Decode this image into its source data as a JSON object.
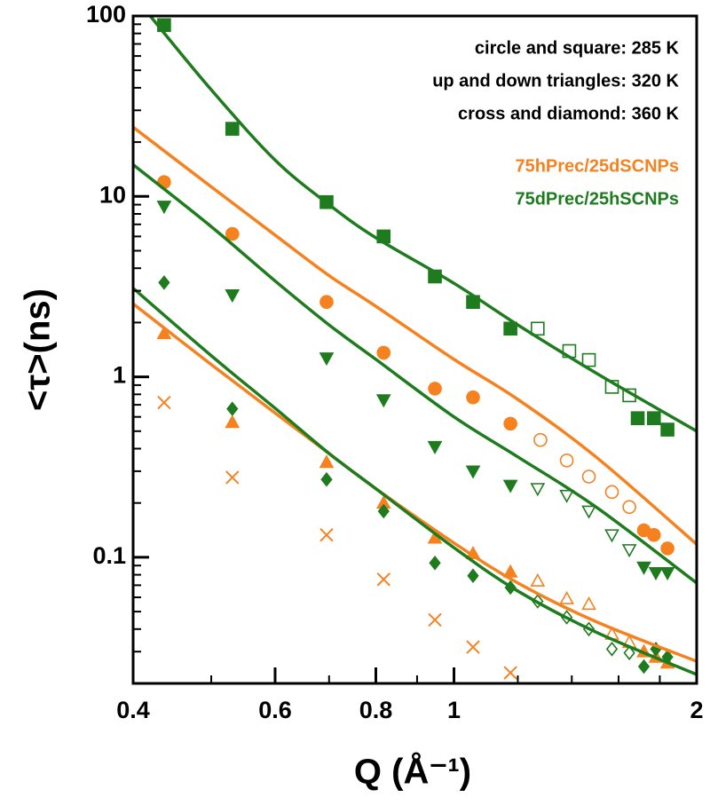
{
  "chart_data": {
    "type": "scatter",
    "xlabel": "Q (Å⁻¹)",
    "ylabel": "<τ>(ns)",
    "xscale": "log",
    "yscale": "log",
    "xlim": [
      0.4,
      2
    ],
    "ylim": [
      0.02,
      100
    ],
    "xticks": [
      0.4,
      0.6,
      0.8,
      1,
      2
    ],
    "xminorticks": [
      0.5,
      0.7,
      0.9,
      1.2,
      1.4,
      1.6,
      1.8
    ],
    "yticks": [
      0.1,
      1,
      10,
      100
    ],
    "yminorticks": [
      0.03,
      0.04,
      0.05,
      0.06,
      0.07,
      0.08,
      0.09,
      0.2,
      0.3,
      0.4,
      0.5,
      0.6,
      0.7,
      0.8,
      0.9,
      2,
      3,
      4,
      5,
      6,
      7,
      8,
      9,
      20,
      30,
      40,
      50,
      60,
      70,
      80,
      90
    ],
    "annotations": [
      "circle and square: 285 K",
      "up and down triangles: 320 K",
      "cross and diamond:  360 K"
    ],
    "legend": [
      {
        "name": "75hPrec/25dSCNPs",
        "color": "#f5821f"
      },
      {
        "name": "75dPrec/25hSCNPs",
        "color": "#1e7b1e"
      }
    ],
    "series": [
      {
        "color": "#1e7b1e",
        "marker": "square",
        "filled": true,
        "x": [
          0.437,
          0.531,
          0.695,
          0.818,
          0.947,
          1.056,
          1.175,
          1.69,
          1.77,
          1.84
        ],
        "values": [
          89,
          23.7,
          9.3,
          6.0,
          3.6,
          2.6,
          1.85,
          0.59,
          0.59,
          0.51
        ]
      },
      {
        "color": "#1e7b1e",
        "marker": "square",
        "filled": false,
        "x": [
          1.27,
          1.39,
          1.47,
          1.57,
          1.65
        ],
        "values": [
          1.85,
          1.39,
          1.24,
          0.88,
          0.79
        ]
      },
      {
        "color": "#f5821f",
        "marker": "circle",
        "filled": true,
        "x": [
          0.437,
          0.531,
          0.695,
          0.818,
          0.947,
          1.056,
          1.175,
          1.72,
          1.77,
          1.84
        ],
        "values": [
          12.0,
          6.2,
          2.6,
          1.36,
          0.86,
          0.77,
          0.55,
          0.141,
          0.133,
          0.112
        ]
      },
      {
        "color": "#f5821f",
        "marker": "circle",
        "filled": false,
        "x": [
          1.28,
          1.38,
          1.47,
          1.57,
          1.65
        ],
        "values": [
          0.447,
          0.344,
          0.28,
          0.23,
          0.19
        ]
      },
      {
        "color": "#1e7b1e",
        "marker": "down",
        "filled": true,
        "x": [
          0.437,
          0.531,
          0.695,
          0.818,
          0.947,
          1.056,
          1.175,
          1.72,
          1.78,
          1.84
        ],
        "values": [
          8.8,
          2.84,
          1.27,
          0.745,
          0.41,
          0.3,
          0.25,
          0.088,
          0.082,
          0.082
        ]
      },
      {
        "color": "#1e7b1e",
        "marker": "down",
        "filled": false,
        "x": [
          1.27,
          1.38,
          1.47,
          1.57,
          1.65
        ],
        "values": [
          0.24,
          0.22,
          0.18,
          0.133,
          0.11
        ]
      },
      {
        "color": "#f5821f",
        "marker": "up",
        "filled": true,
        "x": [
          0.437,
          0.531,
          0.695,
          0.818,
          0.947,
          1.056,
          1.175,
          1.72,
          1.78,
          1.84
        ],
        "values": [
          1.74,
          0.56,
          0.336,
          0.2,
          0.128,
          0.105,
          0.083,
          0.03,
          0.028,
          0.026
        ]
      },
      {
        "color": "#f5821f",
        "marker": "up",
        "filled": false,
        "x": [
          1.27,
          1.38,
          1.47,
          1.57,
          1.65
        ],
        "values": [
          0.074,
          0.059,
          0.055,
          0.0375,
          0.0338
        ]
      },
      {
        "color": "#1e7b1e",
        "marker": "diamond",
        "filled": true,
        "x": [
          0.437,
          0.531,
          0.695,
          0.818,
          0.947,
          1.056,
          1.175,
          1.72,
          1.78,
          1.84
        ],
        "values": [
          3.33,
          0.665,
          0.27,
          0.18,
          0.093,
          0.079,
          0.068,
          0.0248,
          0.031,
          0.028
        ]
      },
      {
        "color": "#1e7b1e",
        "marker": "diamond",
        "filled": false,
        "x": [
          1.27,
          1.38,
          1.47,
          1.57,
          1.65
        ],
        "values": [
          0.057,
          0.0465,
          0.04,
          0.031,
          0.0295
        ]
      },
      {
        "color": "#f5821f",
        "marker": "cross",
        "filled": true,
        "x": [
          0.437,
          0.531,
          0.695,
          0.818,
          0.947,
          1.056,
          1.175
        ],
        "values": [
          0.72,
          0.277,
          0.133,
          0.0754,
          0.045,
          0.0318,
          0.0229
        ]
      },
      {
        "color": "#1e7b1e",
        "marker": "line",
        "x": [
          0.42,
          0.5,
          0.6,
          0.7,
          0.8,
          1,
          1.2,
          1.5,
          2
        ],
        "values": [
          100,
          39,
          15.9,
          9.0,
          5.9,
          3.3,
          1.94,
          1.05,
          0.5
        ]
      },
      {
        "color": "#f5821f",
        "marker": "line",
        "x": [
          0.4,
          0.5,
          0.6,
          0.7,
          0.8,
          1,
          1.2,
          1.5,
          2
        ],
        "values": [
          24.2,
          11.3,
          6.1,
          3.64,
          2.46,
          1.25,
          0.75,
          0.36,
          0.118
        ]
      },
      {
        "color": "#1e7b1e",
        "marker": "line",
        "x": [
          0.4,
          0.5,
          0.6,
          0.7,
          0.8,
          1,
          1.2,
          1.5,
          2
        ],
        "values": [
          15.0,
          6.8,
          3.4,
          1.94,
          1.25,
          0.6,
          0.36,
          0.19,
          0.072
        ]
      },
      {
        "color": "#f5821f",
        "marker": "line",
        "x": [
          0.4,
          0.5,
          0.6,
          0.7,
          0.8,
          1,
          1.2,
          1.5,
          2
        ],
        "values": [
          2.54,
          1.17,
          0.63,
          0.376,
          0.24,
          0.12,
          0.072,
          0.044,
          0.0265
        ]
      },
      {
        "color": "#1e7b1e",
        "marker": "line",
        "x": [
          0.4,
          0.5,
          0.6,
          0.7,
          0.8,
          1,
          1.2,
          1.5,
          2
        ],
        "values": [
          3.1,
          1.31,
          0.67,
          0.376,
          0.24,
          0.113,
          0.065,
          0.0385,
          0.0224
        ]
      }
    ]
  }
}
